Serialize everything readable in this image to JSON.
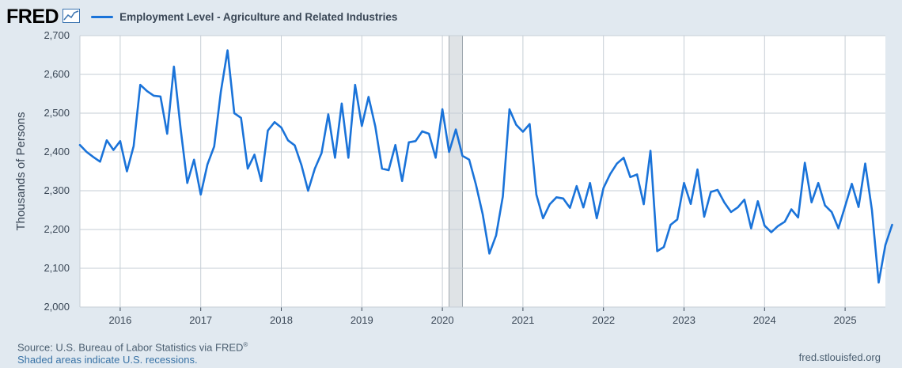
{
  "header": {
    "logo_text": "FRED",
    "series_label": "Employment Level - Agriculture and Related Industries"
  },
  "colors": {
    "line": "#1a73d9",
    "background": "#e1e9f0",
    "plot_bg": "#ffffff",
    "grid": "#c6ced6",
    "recession": "#dfe3e6"
  },
  "icons": {
    "logo_graph": "line-graph-icon"
  },
  "footer": {
    "source": "Source: U.S. Bureau of Labor Statistics via FRED",
    "source_mark": "®",
    "recession_note": "Shaded areas indicate U.S. recessions.",
    "site": "fred.stlouisfed.org"
  },
  "chart_data": {
    "type": "line",
    "title": "Employment Level - Agriculture and Related Industries",
    "xlabel": "",
    "ylabel": "Thousands of Persons",
    "ylim": [
      2000,
      2700
    ],
    "xlim": [
      "2015-07",
      "2025-07"
    ],
    "yticks": [
      "2,000",
      "2,100",
      "2,200",
      "2,300",
      "2,400",
      "2,500",
      "2,600",
      "2,700"
    ],
    "xticks": [
      "2016",
      "2017",
      "2018",
      "2019",
      "2020",
      "2021",
      "2022",
      "2023",
      "2024",
      "2025"
    ],
    "grid": true,
    "legend": "top-left",
    "recessions": [
      {
        "start": "2020-02",
        "end": "2020-04"
      }
    ],
    "series": [
      {
        "name": "Employment Level - Agriculture and Related Industries",
        "start": "2015-07",
        "frequency": "monthly",
        "values": [
          2418,
          2400,
          2387,
          2375,
          2430,
          2405,
          2428,
          2350,
          2415,
          2573,
          2557,
          2545,
          2543,
          2447,
          2620,
          2460,
          2320,
          2380,
          2290,
          2368,
          2414,
          2555,
          2662,
          2500,
          2488,
          2357,
          2393,
          2325,
          2455,
          2477,
          2463,
          2430,
          2417,
          2366,
          2300,
          2357,
          2397,
          2497,
          2385,
          2525,
          2385,
          2573,
          2467,
          2542,
          2466,
          2357,
          2353,
          2418,
          2325,
          2425,
          2428,
          2453,
          2447,
          2385,
          2510,
          2400,
          2458,
          2390,
          2380,
          2316,
          2240,
          2138,
          2185,
          2285,
          2510,
          2470,
          2452,
          2472,
          2290,
          2229,
          2265,
          2283,
          2280,
          2256,
          2312,
          2257,
          2320,
          2229,
          2307,
          2343,
          2370,
          2385,
          2335,
          2342,
          2265,
          2403,
          2144,
          2155,
          2212,
          2226,
          2320,
          2266,
          2355,
          2233,
          2297,
          2302,
          2270,
          2245,
          2257,
          2277,
          2203,
          2273,
          2210,
          2193,
          2209,
          2220,
          2252,
          2231,
          2372,
          2270,
          2320,
          2262,
          2245,
          2203,
          2260,
          2318,
          2258,
          2370,
          2250,
          2063,
          2160,
          2212
        ]
      }
    ]
  }
}
